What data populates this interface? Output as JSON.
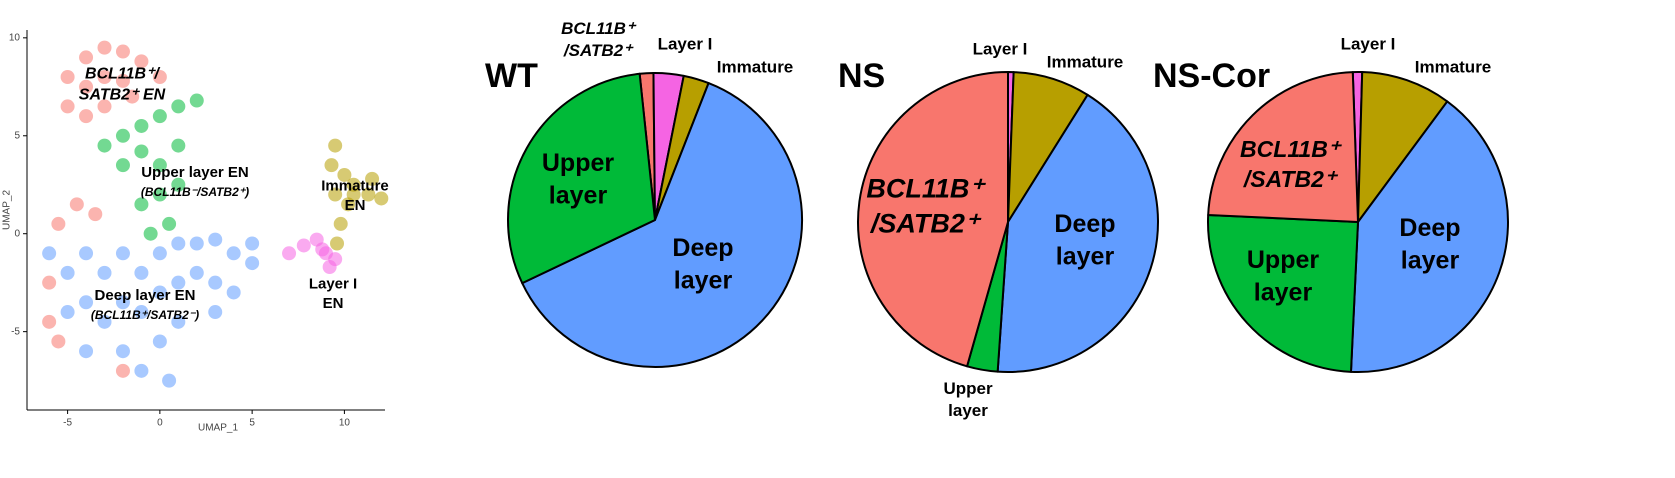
{
  "chart_data": [
    {
      "type": "scatter",
      "xlabel": "UMAP_1",
      "ylabel": "UMAP_2",
      "xlim": [
        -7.2,
        12.2
      ],
      "ylim": [
        -9,
        10.4
      ],
      "xticks": [
        -5,
        0,
        5,
        10
      ],
      "yticks": [
        -5,
        0,
        5,
        10
      ],
      "annotations": [
        "BCL11B⁺/\nSATB2⁺ EN",
        "Upper layer EN",
        "(BCL11B⁻/SATB2⁺)",
        "Immature\nEN",
        "Layer I\nEN",
        "Deep layer EN",
        "(BCL11B⁺/SATB2⁻)"
      ],
      "series": [
        {
          "color": "#f8766d",
          "x": [
            -4,
            -3,
            -2,
            -1,
            -5,
            -4,
            -3,
            -2,
            -5,
            -4,
            -3,
            -1.5,
            0,
            -4.5,
            -3.5,
            -5.5,
            -6,
            -6,
            -5.5,
            -2
          ],
          "values": [
            9,
            9.5,
            9.3,
            8.8,
            8,
            7.5,
            8,
            7.8,
            6.5,
            6,
            6.5,
            7,
            8,
            1.5,
            1,
            0.5,
            -2.5,
            -4.5,
            -5.5,
            -7
          ]
        },
        {
          "color": "#00ba38",
          "x": [
            -3,
            -2,
            -1,
            0,
            1,
            2,
            -1,
            0,
            1,
            0,
            -1,
            0.5,
            -0.5,
            1,
            -2
          ],
          "values": [
            4.5,
            5,
            5.5,
            6,
            6.5,
            6.8,
            4.2,
            3.5,
            4.5,
            2,
            1.5,
            0.5,
            0,
            2.5,
            3.5
          ]
        },
        {
          "color": "#619cff",
          "x": [
            -6,
            -5,
            -4,
            -3,
            -2,
            -1,
            0,
            1,
            2,
            3,
            4,
            5,
            -5,
            -4,
            -3,
            -2,
            -1,
            0,
            1,
            2,
            3,
            4,
            -4,
            -2,
            0,
            1,
            0.5,
            -1,
            3,
            5
          ],
          "values": [
            -1,
            -2,
            -1,
            -2,
            -1,
            -2,
            -1,
            -0.5,
            -0.5,
            -0.3,
            -1,
            -1.5,
            -4,
            -3.5,
            -4.5,
            -3.5,
            -4,
            -3,
            -2.5,
            -2,
            -2.5,
            -3,
            -6,
            -6,
            -5.5,
            -4.5,
            -7.5,
            -7,
            -4,
            -0.5
          ]
        },
        {
          "color": "#b79f00",
          "x": [
            9.5,
            9.3,
            10,
            10.5,
            10.2,
            9.8,
            9.6,
            10.5,
            11.3,
            12,
            11.5,
            9.5
          ],
          "values": [
            4.5,
            3.5,
            3,
            2.5,
            1.5,
            0.5,
            -0.5,
            2,
            2,
            1.8,
            2.8,
            2
          ]
        },
        {
          "color": "#f564e3",
          "x": [
            7,
            7.8,
            8.5,
            9,
            9.2,
            8.8,
            9.5
          ],
          "values": [
            -1,
            -0.6,
            -0.3,
            -1,
            -1.7,
            -0.8,
            -1.3
          ]
        }
      ]
    },
    {
      "type": "pie",
      "title": "WT",
      "categories": [
        "BCL11B⁺\n/SATB2⁺",
        "Layer I",
        "Immature",
        "Deep\nlayer",
        "Upper\nlayer"
      ],
      "values": [
        1.5,
        3.3,
        2.8,
        62,
        30.4
      ],
      "colors": [
        "#f8766d",
        "#f564e3",
        "#b79f00",
        "#619cff",
        "#00ba38"
      ]
    },
    {
      "type": "pie",
      "title": "NS",
      "categories": [
        "Layer I",
        "Immature",
        "Deep\nlayer",
        "Upper\nlayer",
        "BCL11B⁺\n/SATB2⁺"
      ],
      "values": [
        0.6,
        8.3,
        42.2,
        3.3,
        45.6
      ],
      "colors": [
        "#f564e3",
        "#b79f00",
        "#619cff",
        "#00ba38",
        "#f8766d"
      ]
    },
    {
      "type": "pie",
      "title": "NS-Cor",
      "categories": [
        "Layer I",
        "Immature",
        "Deep\nlayer",
        "Upper\nlayer",
        "BCL11B⁺\n/SATB2⁺"
      ],
      "values": [
        1,
        9.7,
        40.6,
        25,
        23.7
      ],
      "colors": [
        "#f564e3",
        "#b79f00",
        "#619cff",
        "#00ba38",
        "#f8766d"
      ]
    }
  ]
}
